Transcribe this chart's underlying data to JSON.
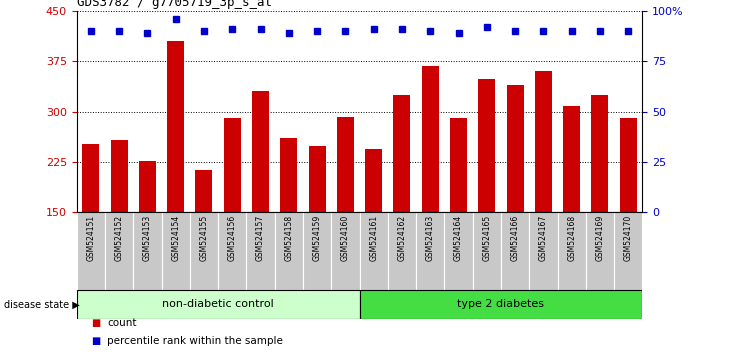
{
  "title": "GDS3782 / g7705719_3p_s_at",
  "samples": [
    "GSM524151",
    "GSM524152",
    "GSM524153",
    "GSM524154",
    "GSM524155",
    "GSM524156",
    "GSM524157",
    "GSM524158",
    "GSM524159",
    "GSM524160",
    "GSM524161",
    "GSM524162",
    "GSM524163",
    "GSM524164",
    "GSM524165",
    "GSM524166",
    "GSM524167",
    "GSM524168",
    "GSM524169",
    "GSM524170"
  ],
  "counts": [
    252,
    258,
    226,
    405,
    213,
    291,
    330,
    260,
    248,
    292,
    244,
    325,
    368,
    291,
    348,
    340,
    360,
    308,
    325,
    291
  ],
  "percentile_ranks": [
    90,
    90,
    89,
    96,
    90,
    91,
    91,
    89,
    90,
    90,
    91,
    91,
    90,
    89,
    92,
    90,
    90,
    90,
    90,
    90
  ],
  "group1_label": "non-diabetic control",
  "group2_label": "type 2 diabetes",
  "group1_count": 10,
  "group2_count": 10,
  "ylim_left": [
    150,
    450
  ],
  "ylim_right": [
    0,
    100
  ],
  "yticks_left": [
    150,
    225,
    300,
    375,
    450
  ],
  "yticks_right": [
    0,
    25,
    50,
    75,
    100
  ],
  "bar_color": "#cc0000",
  "dot_color": "#0000cc",
  "group1_bg": "#ccffcc",
  "group2_bg": "#44dd44",
  "tick_area_bg": "#c8c8c8",
  "disease_state_label": "disease state",
  "legend_count_label": "count",
  "legend_pct_label": "percentile rank within the sample",
  "bar_bottom": 150
}
